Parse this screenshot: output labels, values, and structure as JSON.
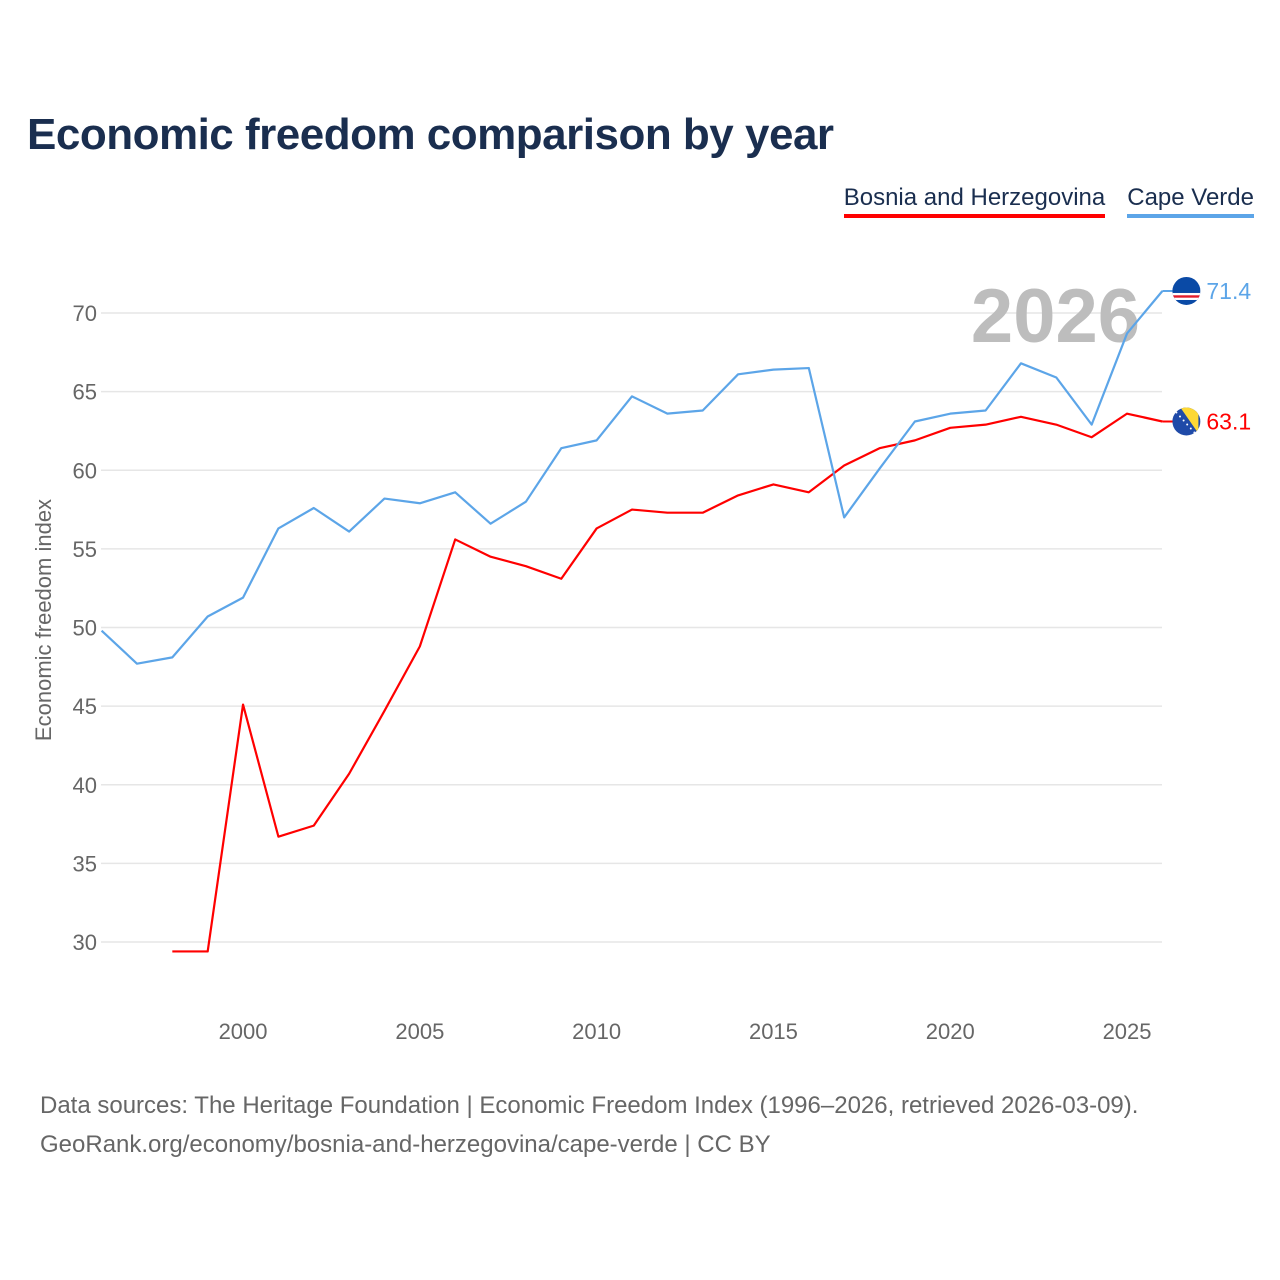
{
  "chart_data": {
    "type": "line",
    "title": "Economic freedom comparison by year",
    "xlabel": "",
    "ylabel": "Economic freedom index",
    "xlim": [
      1996,
      2026
    ],
    "ylim": [
      25.5,
      74
    ],
    "xticks": [
      2000,
      2005,
      2010,
      2015,
      2020,
      2025
    ],
    "yticks": [
      30,
      35,
      40,
      45,
      50,
      55,
      60,
      65,
      70
    ],
    "grid": true,
    "legend_position": "top-right",
    "watermark_year": "2026",
    "series": [
      {
        "name": "Bosnia and Herzegovina",
        "color": "#ff0000",
        "end_label": "63.1",
        "flag_icon": "bosnia-flag-icon",
        "x": [
          1998,
          1999,
          2000,
          2001,
          2002,
          2003,
          2004,
          2005,
          2006,
          2007,
          2008,
          2009,
          2010,
          2011,
          2012,
          2013,
          2014,
          2015,
          2016,
          2017,
          2018,
          2019,
          2020,
          2021,
          2022,
          2023,
          2024,
          2025,
          2026
        ],
        "values": [
          29.4,
          29.4,
          45.1,
          36.7,
          37.4,
          40.7,
          44.7,
          48.8,
          55.6,
          54.5,
          53.9,
          53.1,
          56.3,
          57.5,
          57.3,
          57.3,
          58.4,
          59.1,
          58.6,
          60.3,
          61.4,
          61.9,
          62.7,
          62.9,
          63.4,
          62.9,
          62.1,
          63.6,
          63.1
        ]
      },
      {
        "name": "Cape Verde",
        "color": "#5ca5e8",
        "end_label": "71.4",
        "flag_icon": "cape-verde-flag-icon",
        "x": [
          1996,
          1997,
          1998,
          1999,
          2000,
          2001,
          2002,
          2003,
          2004,
          2005,
          2006,
          2007,
          2008,
          2009,
          2010,
          2011,
          2012,
          2013,
          2014,
          2015,
          2016,
          2017,
          2018,
          2019,
          2020,
          2021,
          2022,
          2023,
          2024,
          2025,
          2026
        ],
        "values": [
          49.8,
          47.7,
          48.1,
          50.7,
          51.9,
          56.3,
          57.6,
          56.1,
          58.2,
          57.9,
          58.6,
          56.6,
          58.0,
          61.4,
          61.9,
          64.7,
          63.6,
          63.8,
          66.1,
          66.4,
          66.5,
          57.0,
          60.1,
          63.1,
          63.6,
          63.8,
          66.8,
          65.9,
          62.9,
          68.7,
          71.4
        ]
      }
    ]
  },
  "footer": {
    "line1": "Data sources: The Heritage Foundation | Economic Freedom Index (1996–2026, retrieved 2026-03-09).",
    "line2": "GeoRank.org/economy/bosnia-and-herzegovina/cape-verde | CC BY"
  }
}
